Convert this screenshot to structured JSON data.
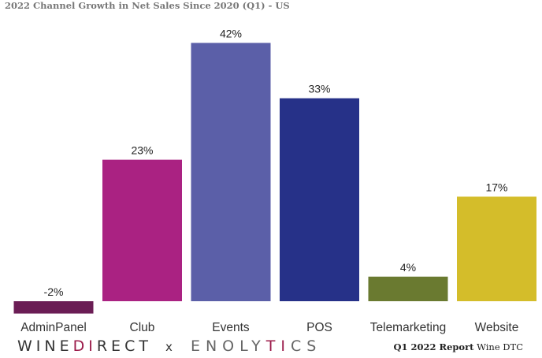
{
  "chart_data": {
    "type": "bar",
    "title": "2022 Channel Growth in Net Sales Since 2020 (Q1) - US",
    "categories": [
      "AdminPanel",
      "Club",
      "Events",
      "POS",
      "Telemarketing",
      "Website"
    ],
    "values": [
      -2,
      23,
      42,
      33,
      4,
      17
    ],
    "data_labels": [
      "-2%",
      "23%",
      "42%",
      "33%",
      "4%",
      "17%"
    ],
    "colors": [
      "#6b1d55",
      "#aa2282",
      "#5b5fa8",
      "#263188",
      "#6a7a30",
      "#d4bd2a"
    ],
    "xlabel": "",
    "ylabel": "",
    "grid": false,
    "legend": "none"
  },
  "footer": {
    "brand_part1": "WINE",
    "brand_accent": "D",
    "brand_accent2": "I",
    "brand_part2": "RECT",
    "separator": "x",
    "partner_part1": "ENOLY",
    "partner_accent": "T",
    "partner_accent2": "I",
    "partner_part2": "CS",
    "report_bold": "Q1 2022 Report",
    "report_rest": "Wine DTC"
  }
}
